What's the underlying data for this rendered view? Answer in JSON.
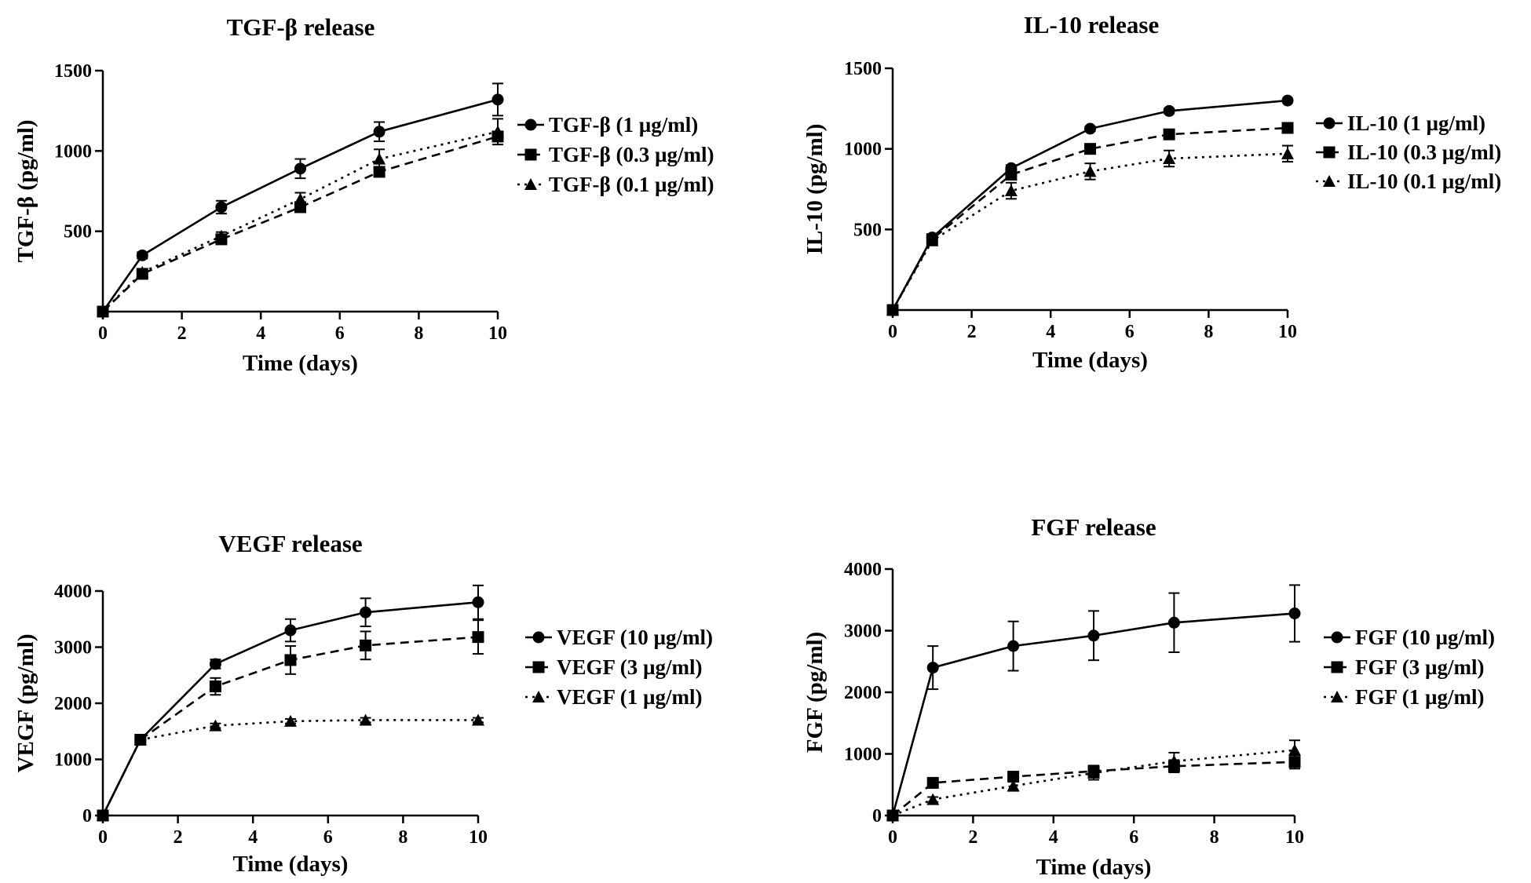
{
  "figure": {
    "background": "#ffffff",
    "ink": "#000000"
  },
  "chart_data": [
    {
      "type": "line",
      "title": "TGF-β release",
      "xlabel": "Time (days)",
      "ylabel": "TGF-β (pg/ml)",
      "xlim": [
        0,
        10
      ],
      "ylim": [
        0,
        1500
      ],
      "xticks": [
        0,
        2,
        4,
        6,
        8,
        10
      ],
      "yticks": [
        500,
        1000,
        1500
      ],
      "legend_position": "right",
      "x": [
        0,
        1,
        3,
        5,
        7,
        10
      ],
      "series": [
        {
          "name": "TGF-β (1 µg/ml)",
          "marker": "circle",
          "dash": "solid",
          "values": [
            0,
            350,
            650,
            890,
            1120,
            1320
          ],
          "errors": [
            0,
            20,
            40,
            60,
            60,
            100
          ]
        },
        {
          "name": "TGF-β (0.3 µg/ml)",
          "marker": "square",
          "dash": "dashed",
          "values": [
            0,
            235,
            450,
            650,
            870,
            1090
          ],
          "errors": [
            0,
            15,
            25,
            30,
            30,
            30
          ]
        },
        {
          "name": "TGF-β (0.1 µg/ml)",
          "marker": "triangle",
          "dash": "dotted",
          "values": [
            0,
            245,
            470,
            700,
            950,
            1120
          ],
          "errors": [
            0,
            15,
            25,
            40,
            60,
            80
          ]
        }
      ]
    },
    {
      "type": "line",
      "title": "IL-10 release",
      "xlabel": "Time (days)",
      "ylabel": "IL-10 (pg/ml)",
      "xlim": [
        0,
        10
      ],
      "ylim": [
        0,
        1500
      ],
      "xticks": [
        0,
        2,
        4,
        6,
        8,
        10
      ],
      "yticks": [
        500,
        1000,
        1500
      ],
      "legend_position": "right",
      "x": [
        0,
        1,
        3,
        5,
        7,
        10
      ],
      "series": [
        {
          "name": "IL-10 (1 µg/ml)",
          "marker": "circle",
          "dash": "solid",
          "values": [
            0,
            450,
            880,
            1125,
            1235,
            1300
          ],
          "errors": [
            0,
            10,
            20,
            15,
            15,
            10
          ]
        },
        {
          "name": "IL-10 (0.3 µg/ml)",
          "marker": "square",
          "dash": "dashed",
          "values": [
            0,
            440,
            840,
            1000,
            1090,
            1130
          ],
          "errors": [
            0,
            10,
            20,
            20,
            20,
            15
          ]
        },
        {
          "name": "IL-10 (0.1 µg/ml)",
          "marker": "triangle",
          "dash": "dotted",
          "values": [
            0,
            430,
            740,
            860,
            940,
            970
          ],
          "errors": [
            0,
            15,
            50,
            50,
            50,
            50
          ]
        }
      ]
    },
    {
      "type": "line",
      "title": "VEGF release",
      "xlabel": "Time (days)",
      "ylabel": "VEGF (pg/ml)",
      "xlim": [
        0,
        10
      ],
      "ylim": [
        0,
        4000
      ],
      "xticks": [
        0,
        2,
        4,
        6,
        8,
        10
      ],
      "yticks": [
        0,
        1000,
        2000,
        3000,
        4000
      ],
      "legend_position": "right",
      "x": [
        0,
        1,
        3,
        5,
        7,
        10
      ],
      "series": [
        {
          "name": "VEGF (10 µg/ml)",
          "marker": "circle",
          "dash": "solid",
          "values": [
            0,
            1350,
            2700,
            3300,
            3620,
            3800
          ],
          "errors": [
            0,
            60,
            80,
            200,
            250,
            300
          ]
        },
        {
          "name": "VEGF (3 µg/ml)",
          "marker": "square",
          "dash": "dashed",
          "values": [
            0,
            1350,
            2300,
            2770,
            3030,
            3180
          ],
          "errors": [
            0,
            60,
            150,
            250,
            250,
            300
          ]
        },
        {
          "name": "VEGF (1 µg/ml)",
          "marker": "triangle",
          "dash": "dotted",
          "values": [
            0,
            1350,
            1600,
            1680,
            1700,
            1700
          ],
          "errors": [
            0,
            40,
            40,
            40,
            40,
            40
          ]
        }
      ]
    },
    {
      "type": "line",
      "title": "FGF release",
      "xlabel": "Time (days)",
      "ylabel": "FGF (pg/ml)",
      "xlim": [
        0,
        10
      ],
      "ylim": [
        0,
        4000
      ],
      "xticks": [
        0,
        2,
        4,
        6,
        8,
        10
      ],
      "yticks": [
        0,
        1000,
        2000,
        3000,
        4000
      ],
      "legend_position": "right",
      "x": [
        0,
        1,
        3,
        5,
        7,
        10
      ],
      "series": [
        {
          "name": "FGF (10 µg/ml)",
          "marker": "circle",
          "dash": "solid",
          "values": [
            0,
            2400,
            2750,
            2920,
            3130,
            3280
          ],
          "errors": [
            0,
            350,
            400,
            400,
            480,
            460
          ]
        },
        {
          "name": "FGF (3 µg/ml)",
          "marker": "square",
          "dash": "dashed",
          "values": [
            0,
            530,
            630,
            720,
            800,
            870
          ],
          "errors": [
            0,
            60,
            80,
            90,
            100,
            110
          ]
        },
        {
          "name": "FGF (1 µg/ml)",
          "marker": "triangle",
          "dash": "dotted",
          "values": [
            0,
            260,
            480,
            690,
            880,
            1060
          ],
          "errors": [
            0,
            40,
            80,
            110,
            140,
            160
          ]
        }
      ]
    }
  ]
}
